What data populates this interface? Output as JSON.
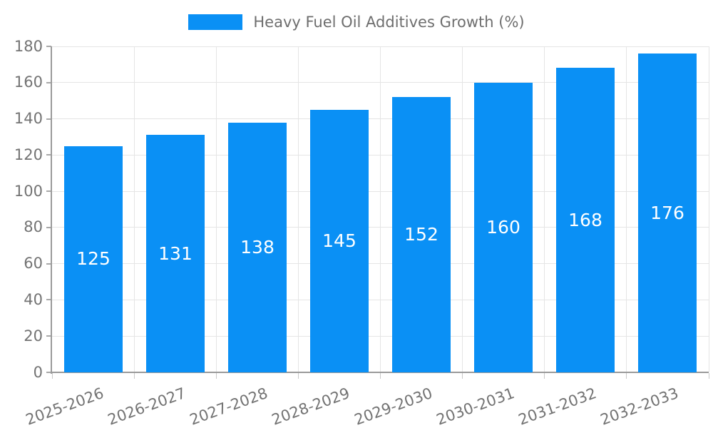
{
  "legend": {
    "label": "Heavy Fuel Oil Additives Growth (%)"
  },
  "chart_data": {
    "type": "bar",
    "title": "Heavy Fuel Oil Additives Growth (%)",
    "categories": [
      "2025-2026",
      "2026-2027",
      "2027-2028",
      "2028-2029",
      "2029-2030",
      "2030-2031",
      "2031-2032",
      "2032-2033"
    ],
    "values": [
      125,
      131,
      138,
      145,
      152,
      160,
      168,
      176
    ],
    "xlabel": "",
    "ylabel": "",
    "ylim": [
      0,
      180
    ],
    "yticks": [
      0,
      20,
      40,
      60,
      80,
      100,
      120,
      140,
      160,
      180
    ],
    "grid": true,
    "legend_position": "top-center",
    "value_labels": "inside-middle",
    "colors": {
      "bar": "#0A90F5",
      "grid": "#e5e5e5",
      "axis": "#9a9a9a",
      "axis_label": "#737373",
      "bar_label": "#ffffff",
      "legend_text": "#6e6e6e"
    }
  }
}
